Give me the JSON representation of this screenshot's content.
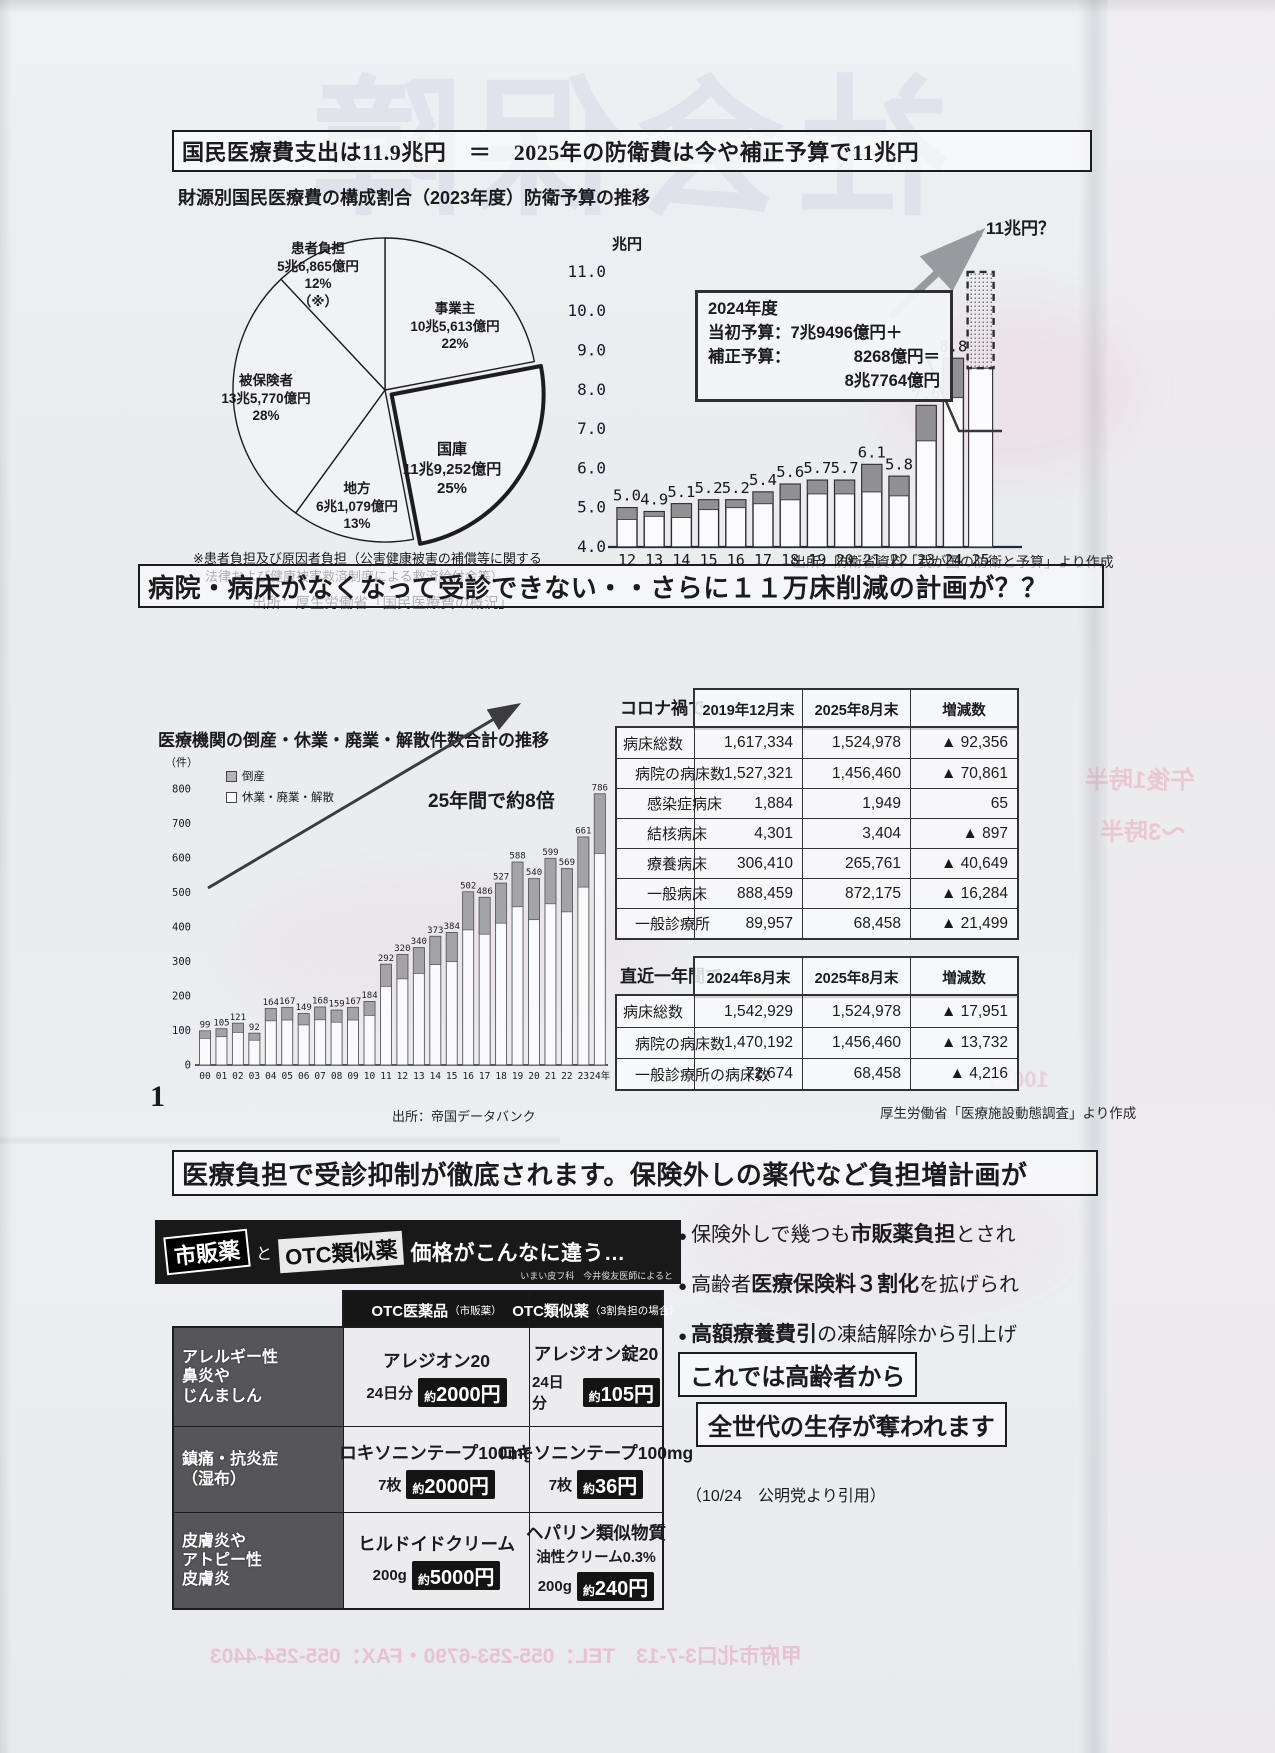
{
  "page": {
    "number": "1"
  },
  "headlines": {
    "h1": "国民医療費支出は11.9兆円　＝　2025年の防衛費は今や補正予算で11兆円",
    "h2": "病院・病床がなくなって受診できない・・さらに１１万床削減の計画が？？",
    "h3": "医療負担で受診抑制が徹底されます。保険外しの薬代など負担増計画が"
  },
  "section1": {
    "title_left": "財源別国民医療費の構成割合（2023年度）",
    "title_right": "防衛予算の推移",
    "footnote_line1": "※患者負担及び原因者負担（公害健康被害の補償等に関する",
    "footnote_line2": "法律および健康被害救済制度による救済給付金等）",
    "pie_source": "出所：厚生労働省「国民医療費の概況」"
  },
  "chart_data": [
    {
      "type": "pie",
      "title": "財源別国民医療費の構成割合（2023年度）",
      "slices": [
        {
          "label": "事業主",
          "amount": "10兆5,613億円",
          "pct": 22
        },
        {
          "label": "国庫",
          "amount": "11兆9,252億円",
          "pct": 25,
          "emphasis": true
        },
        {
          "label": "地方",
          "amount": "6兆1,079億円",
          "pct": 13
        },
        {
          "label": "被保険者",
          "amount": "13兆5,770億円",
          "pct": 28
        },
        {
          "label": "患者負担",
          "amount": "5兆6,865億円",
          "pct": 12,
          "note": "（※）"
        }
      ]
    },
    {
      "type": "bar",
      "title": "防衛予算の推移",
      "unit": "兆円",
      "ylim": [
        4.0,
        11.0
      ],
      "yticks": [
        "11.0",
        "10.0",
        "9.0",
        "8.0",
        "7.0",
        "6.0",
        "5.0",
        "4.0"
      ],
      "categories": [
        "12",
        "13",
        "14",
        "15",
        "16",
        "17",
        "18",
        "19",
        "20",
        "21",
        "22",
        "23",
        "24",
        "25"
      ],
      "values": [
        5.0,
        4.9,
        5.1,
        5.2,
        5.2,
        5.4,
        5.6,
        5.7,
        5.7,
        6.1,
        5.8,
        7.6,
        8.8,
        null
      ],
      "value_labels": [
        "5.0",
        "4.9",
        "5.1",
        "5.2",
        "5.2",
        "5.4",
        "5.6",
        "5.7",
        "5.7",
        "6.1",
        "5.8",
        "7.6",
        "8.8"
      ],
      "supplement_visual": [
        0.3,
        0.12,
        0.35,
        0.25,
        0.2,
        0.3,
        0.4,
        0.35,
        0.35,
        0.7,
        0.5,
        0.9,
        1.0
      ],
      "projection": {
        "year": "25",
        "value": 11.0,
        "bar_base": 8.55,
        "label": "11兆円？"
      },
      "callout": {
        "title": "2024年度",
        "l2": "当初予算：7兆9496億円＋",
        "l3a": "補正予算：",
        "l3b": "8268億円＝",
        "l4": "8兆7764億円"
      },
      "source": "出所：防衛省資料「我が国の防衛と予算」より作成"
    },
    {
      "type": "stacked-bar",
      "title": "医療機関の倒産・休業・廃業・解散件数合計の推移",
      "unit": "（件）",
      "legend": [
        "倒産",
        "休業・廃業・解散"
      ],
      "annotation": "25年間で約8倍",
      "ylim": [
        0,
        800
      ],
      "yticks": [
        "800",
        "700",
        "600",
        "500",
        "400",
        "300",
        "200",
        "100",
        "0"
      ],
      "categories": [
        "00",
        "01",
        "02",
        "03",
        "04",
        "05",
        "06",
        "07",
        "08",
        "09",
        "10",
        "11",
        "12",
        "13",
        "14",
        "15",
        "16",
        "17",
        "18",
        "19",
        "20",
        "21",
        "22",
        "23",
        "24年"
      ],
      "values": [
        99,
        105,
        121,
        92,
        164,
        167,
        149,
        168,
        159,
        167,
        184,
        292,
        320,
        340,
        373,
        384,
        502,
        486,
        527,
        588,
        540,
        599,
        569,
        661,
        786
      ],
      "source": "出所：帝国データバンク"
    }
  ],
  "bed_tables": {
    "t1": {
      "caption": "コロナ禍で…",
      "cols": [
        "2019年12月末",
        "2025年8月末",
        "増減数"
      ],
      "rows": [
        {
          "label": "病床総数",
          "indent": 0,
          "v": [
            "1,617,334",
            "1,524,978",
            "▲ 92,356"
          ]
        },
        {
          "label": "病院の病床数",
          "indent": 1,
          "v": [
            "1,527,321",
            "1,456,460",
            "▲ 70,861"
          ]
        },
        {
          "label": "感染症病床",
          "indent": 2,
          "v": [
            "1,884",
            "1,949",
            "65"
          ]
        },
        {
          "label": "結核病床",
          "indent": 2,
          "v": [
            "4,301",
            "3,404",
            "▲ 897"
          ]
        },
        {
          "label": "療養病床",
          "indent": 2,
          "v": [
            "306,410",
            "265,761",
            "▲ 40,649"
          ]
        },
        {
          "label": "一般病床",
          "indent": 2,
          "v": [
            "888,459",
            "872,175",
            "▲ 16,284"
          ]
        },
        {
          "label": "一般診療所",
          "indent": 1,
          "v": [
            "89,957",
            "68,458",
            "▲ 21,499"
          ]
        }
      ]
    },
    "t2": {
      "caption": "直近一年間で…",
      "cols": [
        "2024年8月末",
        "2025年8月末",
        "増減数"
      ],
      "rows": [
        {
          "label": "病床総数",
          "indent": 0,
          "v": [
            "1,542,929",
            "1,524,978",
            "▲ 17,951"
          ]
        },
        {
          "label": "病院の病床数",
          "indent": 1,
          "v": [
            "1,470,192",
            "1,456,460",
            "▲ 13,732"
          ]
        },
        {
          "label": "一般診療所の病床数",
          "indent": 1,
          "v": [
            "72,674",
            "68,458",
            "▲ 4,216"
          ]
        }
      ]
    },
    "source": "厚生労働省「医療施設動態調査」より作成"
  },
  "otc": {
    "banner": {
      "tag1": "市販薬",
      "conj": "と",
      "tag2": "OTC類似薬",
      "rest": "価格がこんなに違う…",
      "sub": "いまい皮フ科　今井俊友医師によると"
    },
    "col1_header": "OTC医薬品",
    "col1_sub": "（市販薬）",
    "col2_header": "OTC類似薬",
    "col2_sub": "（3割負担の場合）",
    "rows": [
      {
        "label": [
          "アレルギー性",
          "鼻炎や",
          "じんましん"
        ],
        "c1": {
          "name": "アレジオン20",
          "qty": "24日分",
          "price": "約2000円"
        },
        "c2": {
          "name": "アレジオン錠20",
          "qty": "24日分",
          "price": "約105円"
        }
      },
      {
        "label": [
          "鎮痛・抗炎症",
          "（湿布）"
        ],
        "c1": {
          "name": "ロキソニンテープ100mg",
          "qty": "7枚",
          "price": "約2000円"
        },
        "c2": {
          "name": "ロキソニンテープ100mg",
          "qty": "7枚",
          "price": "約36円"
        }
      },
      {
        "label": [
          "皮膚炎や",
          "アトピー性",
          "皮膚炎"
        ],
        "c1": {
          "name": "ヒルドイドクリーム",
          "qty": "200g",
          "price": "約5000円"
        },
        "c2": {
          "name": "ヘパリン類似物質",
          "name2": "油性クリーム0.3%",
          "qty": "200g",
          "price": "約240円"
        }
      }
    ]
  },
  "bullets_marker": "●",
  "bullets": [
    {
      "pre": "保険外しで幾つも",
      "bold": "市販薬負担",
      "post": "とされ"
    },
    {
      "pre": "高齢者",
      "bold": "医療保険料３割化",
      "post": "を拡げられ"
    },
    {
      "pre": "",
      "bold": "高額療養費引",
      "post": "の凍結解除から引上げ"
    }
  ],
  "statements": {
    "box1": "これでは高齢者から",
    "box2": "全世代の生存が奪われます",
    "cite": "（10/24　公明党より引用）"
  },
  "ghosts": [
    {
      "text": "社会保障"
    },
    {
      "text": "午後1時半"
    },
    {
      "text": "〜3時半"
    },
    {
      "text": "100円"
    },
    {
      "text": "甲府市北口3-7-13　TEL：055-253-6790・FAX：055-254-4403"
    }
  ]
}
